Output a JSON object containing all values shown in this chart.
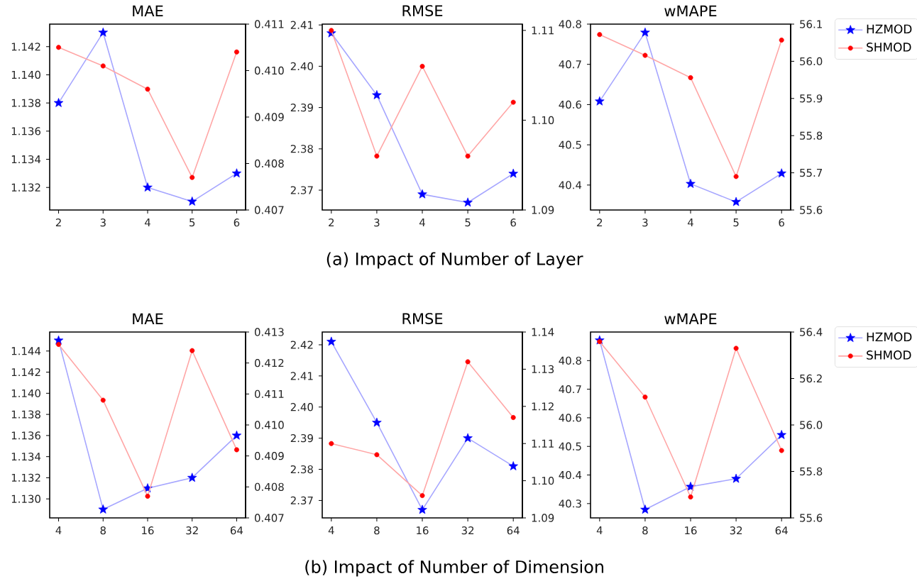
{
  "chart_data": [
    {
      "type": "line",
      "title": "MAE",
      "categories": [
        "2",
        "3",
        "4",
        "5",
        "6"
      ],
      "ylim": [
        1.1304,
        1.1436
      ],
      "yticks": [
        1.132,
        1.134,
        1.136,
        1.138,
        {
          "value": 1.14,
          "label": "1.140"
        },
        1.142
      ],
      "y2lim": [
        0.407,
        0.411
      ],
      "y2ticks": [
        0.407,
        0.408,
        0.409,
        {
          "value": 0.41,
          "label": "0.410"
        },
        0.411
      ],
      "series": [
        {
          "color": "#0000ff",
          "marker": "star",
          "axis": "y",
          "values": [
            1.138,
            1.143,
            1.132,
            1.131,
            1.133
          ]
        },
        {
          "color": "#ff0000",
          "marker": "circle",
          "axis": "y2",
          "values": [
            0.4105,
            0.4101,
            0.4096,
            0.4077,
            0.4104
          ]
        }
      ]
    },
    {
      "type": "line",
      "title": "RMSE",
      "categories": [
        "2",
        "3",
        "4",
        "5",
        "6"
      ],
      "ylim": [
        2.3652,
        2.4102
      ],
      "yticks": [
        2.37,
        2.38,
        2.39,
        {
          "value": 2.4,
          "label": "2.40"
        },
        2.41
      ],
      "y2lim": [
        1.09,
        1.1107
      ],
      "y2ticks": [
        1.09,
        {
          "value": 1.1,
          "label": "1.10"
        },
        1.11
      ],
      "annotations": [
        "(a) Impact of Number of Layer"
      ],
      "series": [
        {
          "color": "#0000ff",
          "marker": "star",
          "axis": "y",
          "values": [
            2.408,
            2.393,
            2.369,
            2.367,
            2.374
          ]
        },
        {
          "color": "#ff0000",
          "marker": "circle",
          "axis": "y2",
          "values": [
            1.11,
            1.096,
            1.106,
            1.096,
            1.102
          ]
        }
      ]
    },
    {
      "type": "line",
      "title": "wMAPE",
      "categories": [
        "2",
        "3",
        "4",
        "5",
        "6"
      ],
      "ylim": [
        40.338,
        40.8
      ],
      "yticks": [
        40.4,
        40.5,
        40.6,
        40.7,
        40.8
      ],
      "y2lim": [
        55.6,
        56.1
      ],
      "y2ticks": [
        55.6,
        55.7,
        55.8,
        55.9,
        {
          "value": 56,
          "label": "56.0"
        },
        56.1
      ],
      "legend": "top right",
      "series": [
        {
          "name": "HZMOD",
          "color": "#0000ff",
          "marker": "star",
          "axis": "y",
          "values": [
            40.608,
            40.779,
            40.403,
            40.358,
            40.429
          ]
        },
        {
          "name": "SHMOD",
          "color": "#ff0000",
          "marker": "circle",
          "axis": "y2",
          "values": [
            56.072,
            56.016,
            55.956,
            55.69,
            56.057
          ]
        }
      ]
    },
    {
      "type": "line",
      "title": "MAE",
      "categories": [
        "4",
        "8",
        "16",
        "32",
        "64"
      ],
      "ylim": [
        1.1282,
        1.1458
      ],
      "yticks": [
        {
          "value": 1.13,
          "label": "1.130"
        },
        1.132,
        1.134,
        1.136,
        1.138,
        {
          "value": 1.14,
          "label": "1.140"
        },
        1.142,
        1.144
      ],
      "y2lim": [
        0.407,
        0.413
      ],
      "y2ticks": [
        0.407,
        0.408,
        0.409,
        {
          "value": 0.41,
          "label": "0.410"
        },
        0.411,
        0.412,
        0.413
      ],
      "series": [
        {
          "color": "#0000ff",
          "marker": "star",
          "axis": "y",
          "values": [
            1.145,
            1.129,
            1.131,
            1.132,
            1.136
          ]
        },
        {
          "color": "#ff0000",
          "marker": "circle",
          "axis": "y2",
          "values": [
            0.4126,
            0.4108,
            0.4077,
            0.4124,
            0.4092
          ]
        }
      ]
    },
    {
      "type": "line",
      "title": "RMSE",
      "categories": [
        "4",
        "8",
        "16",
        "32",
        "64"
      ],
      "ylim": [
        2.3644,
        2.4241
      ],
      "yticks": [
        2.37,
        2.38,
        2.39,
        {
          "value": 2.4,
          "label": "2.40"
        },
        2.41,
        2.42
      ],
      "y2lim": [
        1.09,
        1.14
      ],
      "y2ticks": [
        1.09,
        {
          "value": 1.1,
          "label": "1.10"
        },
        1.11,
        1.12,
        1.13,
        1.14
      ],
      "annotations": [
        "(b) Impact of Number of Dimension"
      ],
      "series": [
        {
          "color": "#0000ff",
          "marker": "star",
          "axis": "y",
          "values": [
            2.421,
            2.395,
            2.367,
            2.39,
            2.381
          ]
        },
        {
          "color": "#ff0000",
          "marker": "circle",
          "axis": "y2",
          "values": [
            1.11,
            1.107,
            1.096,
            1.132,
            1.117
          ]
        }
      ]
    },
    {
      "type": "line",
      "title": "wMAPE",
      "categories": [
        "4",
        "8",
        "16",
        "32",
        "64"
      ],
      "ylim": [
        40.25,
        40.9
      ],
      "yticks": [
        40.3,
        40.4,
        40.5,
        40.6,
        40.7,
        40.8
      ],
      "y2lim": [
        55.6,
        56.4
      ],
      "y2ticks": [
        55.6,
        55.8,
        {
          "value": 56,
          "label": "56.0"
        },
        56.2,
        56.4
      ],
      "legend": "top right",
      "series": [
        {
          "name": "HZMOD",
          "color": "#0000ff",
          "marker": "star",
          "axis": "y",
          "values": [
            40.871,
            40.279,
            40.359,
            40.387,
            40.54
          ]
        },
        {
          "name": "SHMOD",
          "color": "#ff0000",
          "marker": "circle",
          "axis": "y2",
          "values": [
            56.359,
            56.12,
            55.69,
            56.33,
            55.89
          ]
        }
      ]
    }
  ]
}
